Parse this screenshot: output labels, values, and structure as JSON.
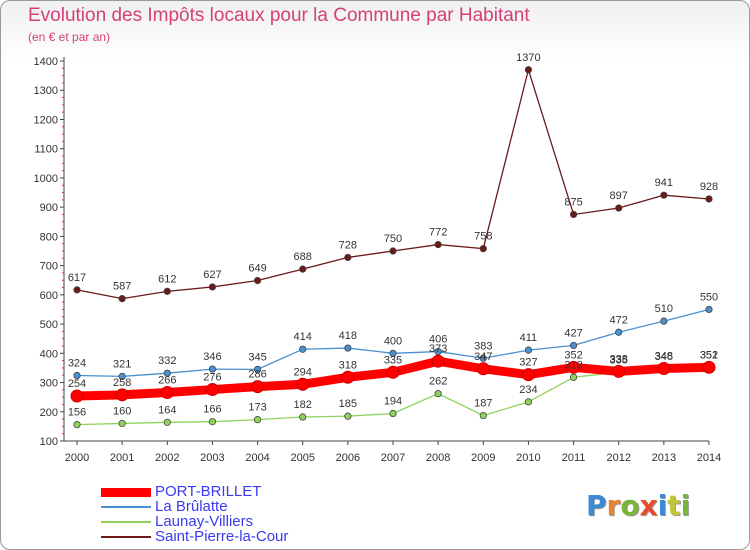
{
  "title": "Evolution des Impôts locaux pour la Commune par Habitant",
  "subtitle": "(en € et par an)",
  "logo": {
    "letters": [
      "P",
      "r",
      "o",
      "x",
      "i",
      "t",
      "i"
    ],
    "colors": [
      "#3a8ad6",
      "#e8842a",
      "#7ab53a",
      "#e84a2a",
      "#3a8ad6",
      "#c4c43a",
      "#7ab53a"
    ]
  },
  "chart_data": {
    "type": "line",
    "x": [
      "2000",
      "2001",
      "2002",
      "2003",
      "2004",
      "2005",
      "2006",
      "2007",
      "2008",
      "2009",
      "2010",
      "2011",
      "2012",
      "2013",
      "2014"
    ],
    "ylim": [
      100,
      1400
    ],
    "yticks": [
      "100",
      "200",
      "300",
      "400",
      "500",
      "600",
      "700",
      "800",
      "900",
      "1000",
      "1100",
      "1200",
      "1300",
      "1400"
    ],
    "grid": false,
    "legend_position": "bottom-left",
    "series": [
      {
        "name": "PORT-BRILLET",
        "color": "#ff0000",
        "values": [
          254,
          258,
          266,
          276,
          286,
          294,
          318,
          335,
          373,
          347,
          327,
          352,
          338,
          348,
          352
        ],
        "labels": [
          "254",
          "258",
          "266",
          "276",
          "286",
          "294",
          "318",
          "335",
          "373",
          "347",
          "327",
          "352",
          "338",
          "348",
          "352"
        ]
      },
      {
        "name": "La Brûlatte",
        "color": "#4a8fd0",
        "values": [
          324,
          321,
          332,
          346,
          345,
          414,
          418,
          400,
          406,
          383,
          411,
          427,
          472,
          510,
          550
        ],
        "labels": [
          "324",
          "321",
          "332",
          "346",
          "345",
          "414",
          "418",
          "400",
          "406",
          "383",
          "411",
          "427",
          "472",
          "510",
          "550"
        ]
      },
      {
        "name": "Launay-Villiers",
        "color": "#8fd45a",
        "values": [
          156,
          160,
          164,
          166,
          173,
          182,
          185,
          194,
          262,
          187,
          234,
          318,
          335,
          346,
          351
        ],
        "labels": [
          "156",
          "160",
          "164",
          "166",
          "173",
          "182",
          "185",
          "194",
          "262",
          "187",
          "234",
          "318",
          "335",
          "346",
          "351"
        ]
      },
      {
        "name": "Saint-Pierre-la-Cour",
        "color": "#6b1a1a",
        "values": [
          617,
          587,
          612,
          627,
          649,
          688,
          728,
          750,
          772,
          758,
          1370,
          875,
          897,
          941,
          928
        ],
        "labels": [
          "617",
          "587",
          "612",
          "627",
          "649",
          "688",
          "728",
          "750",
          "772",
          "758",
          "1370",
          "875",
          "897",
          "941",
          "928"
        ]
      }
    ]
  }
}
